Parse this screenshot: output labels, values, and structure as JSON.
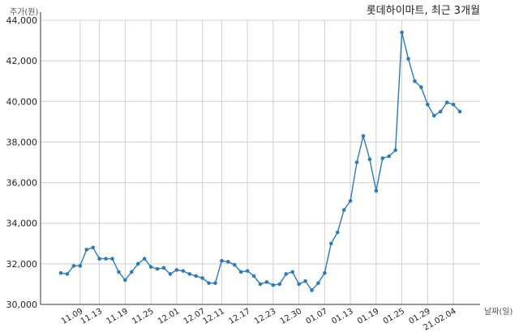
{
  "chart_data": {
    "type": "line",
    "title": "롯데하이마트, 최근 3개월",
    "ylabel": "주가(원)",
    "xlabel": "날짜(일)",
    "ylim": [
      30000,
      44000
    ],
    "yticks": [
      "30,000",
      "32,000",
      "34,000",
      "36,000",
      "38,000",
      "40,000",
      "42,000",
      "44,000"
    ],
    "xtick_labels": [
      "11.09",
      "11.13",
      "11.19",
      "11.25",
      "12.01",
      "12.07",
      "12.11",
      "12.17",
      "12.23",
      "12.30",
      "01.07",
      "01.13",
      "01.19",
      "01.25",
      "01.29",
      "21.02.04"
    ],
    "xtick_indices": [
      3,
      6,
      10,
      14,
      18,
      22,
      25,
      29,
      33,
      37,
      41,
      45,
      49,
      53,
      57,
      61
    ],
    "grid": true,
    "line_color": "#2b7bb9",
    "values": [
      31550,
      31500,
      31900,
      31900,
      32700,
      32800,
      32250,
      32250,
      32250,
      31600,
      31200,
      31600,
      32000,
      32250,
      31850,
      31750,
      31800,
      31500,
      31700,
      31650,
      31500,
      31400,
      31300,
      31050,
      31050,
      32150,
      32100,
      31950,
      31600,
      31650,
      31400,
      31000,
      31100,
      30950,
      31000,
      31500,
      31600,
      31000,
      31150,
      30700,
      31050,
      31550,
      33000,
      33550,
      34650,
      35100,
      37000,
      38300,
      37150,
      35600,
      37200,
      37300,
      37600,
      43400,
      42100,
      41000,
      40700,
      39850,
      39300,
      39500,
      39950,
      39850,
      39500
    ]
  }
}
